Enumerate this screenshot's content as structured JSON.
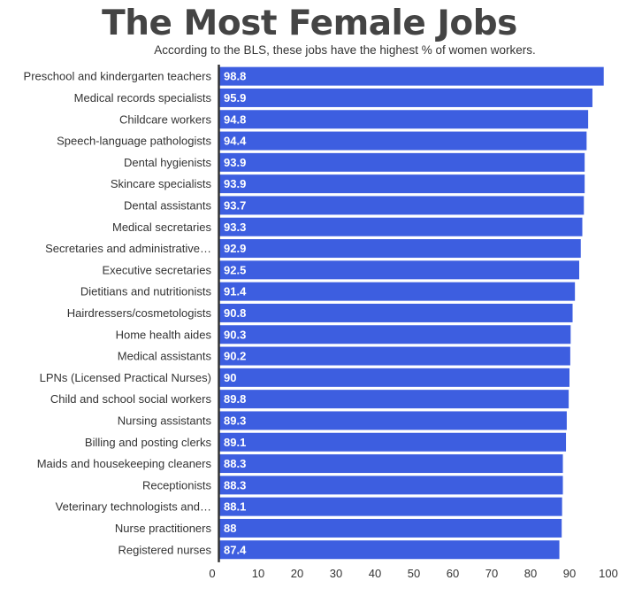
{
  "chart_data": {
    "type": "bar",
    "orientation": "horizontal",
    "title": "The Most Female Jobs",
    "subtitle": "According to the BLS, these jobs have the highest % of women workers.",
    "categories": [
      "Preschool and kindergarten teachers",
      "Medical records specialists",
      "Childcare workers",
      "Speech-language pathologists",
      "Dental hygienists",
      "Skincare specialists",
      "Dental assistants",
      "Medical secretaries",
      "Secretaries and administrative…",
      "Executive secretaries",
      "Dietitians and nutritionists",
      "Hairdressers/cosmetologists",
      "Home health aides",
      "Medical assistants",
      "LPNs (Licensed Practical Nurses)",
      "Child and school social workers",
      "Nursing assistants",
      "Billing and posting clerks",
      "Maids and housekeeping cleaners",
      "Receptionists",
      "Veterinary technologists and…",
      "Nurse practitioners",
      "Registered nurses"
    ],
    "values": [
      98.8,
      95.9,
      94.8,
      94.4,
      93.9,
      93.9,
      93.7,
      93.3,
      92.9,
      92.5,
      91.4,
      90.8,
      90.3,
      90.2,
      90,
      89.8,
      89.3,
      89.1,
      88.3,
      88.3,
      88.1,
      88,
      87.4
    ],
    "value_labels": [
      "98.8",
      "95.9",
      "94.8",
      "94.4",
      "93.9",
      "93.9",
      "93.7",
      "93.3",
      "92.9",
      "92.5",
      "91.4",
      "90.8",
      "90.3",
      "90.2",
      "90",
      "89.8",
      "89.3",
      "89.1",
      "88.3",
      "88.3",
      "88.1",
      "88",
      "87.4"
    ],
    "xlim": [
      0,
      100
    ],
    "xticks": [
      "0",
      "10",
      "20",
      "30",
      "40",
      "50",
      "60",
      "70",
      "80",
      "90",
      "100"
    ],
    "grid": false,
    "bar_color": "#3d5ee0",
    "axis_color": "#333333"
  }
}
